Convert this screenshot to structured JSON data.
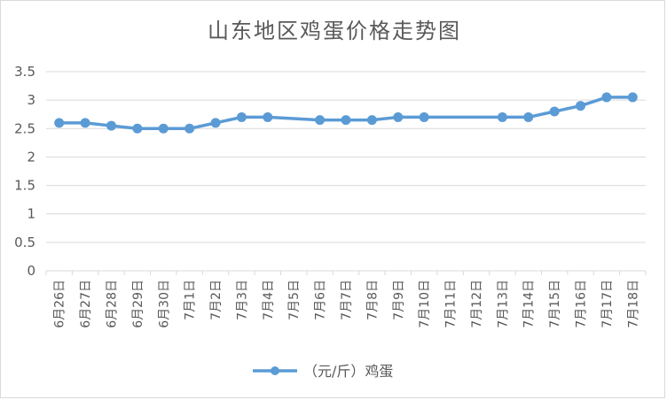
{
  "chart_data": {
    "type": "line",
    "title": "山东地区鸡蛋价格走势图",
    "xlabel": "",
    "ylabel": "",
    "categories": [
      "6月26日",
      "6月27日",
      "6月28日",
      "6月29日",
      "6月30日",
      "7月1日",
      "7月2日",
      "7月3日",
      "7月4日",
      "7月5日",
      "7月6日",
      "7月7日",
      "7月8日",
      "7月9日",
      "7月10日",
      "7月11日",
      "7月12日",
      "7月13日",
      "7月14日",
      "7月15日",
      "7月16日",
      "7月17日",
      "7月18日"
    ],
    "series": [
      {
        "name": "（元/斤）鸡蛋",
        "color": "#5b9bd5",
        "values": [
          2.6,
          2.6,
          2.55,
          2.5,
          2.5,
          2.5,
          2.6,
          2.7,
          2.7,
          null,
          2.65,
          2.65,
          2.65,
          2.7,
          2.7,
          null,
          null,
          2.7,
          2.7,
          2.8,
          2.9,
          3.05,
          3.05
        ]
      }
    ],
    "yticks": [
      "0",
      "0.5",
      "1",
      "1.5",
      "2",
      "2.5",
      "3",
      "3.5"
    ],
    "ylim": [
      0,
      3.5
    ],
    "grid": true,
    "legend_position": "bottom"
  }
}
